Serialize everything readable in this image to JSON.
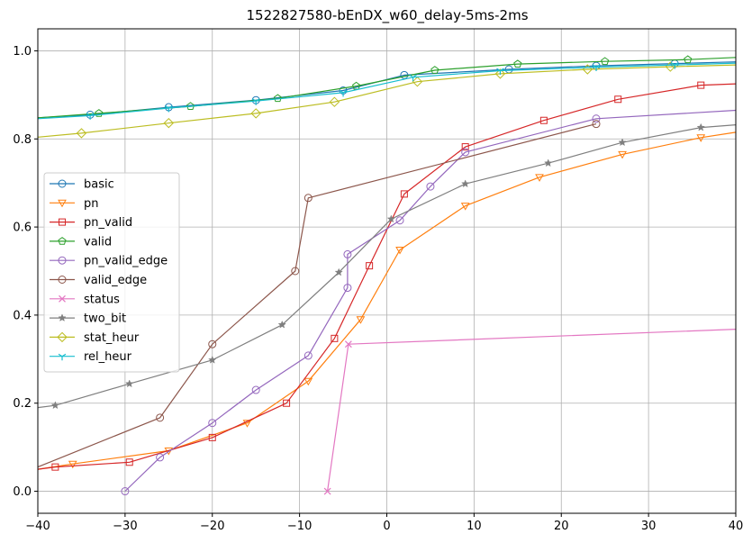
{
  "chart_data": {
    "type": "line",
    "title": "1522827580-bEnDX_w60_delay-5ms-2ms",
    "xlabel": "",
    "ylabel": "",
    "xlim": [
      -40,
      40
    ],
    "ylim": [
      -0.05,
      1.05
    ],
    "xticks": [
      -40,
      -30,
      -20,
      -10,
      0,
      10,
      20,
      30,
      40
    ],
    "xtick_labels": [
      "−40",
      "−30",
      "−20",
      "−10",
      "0",
      "10",
      "20",
      "30",
      "40"
    ],
    "yticks": [
      0.0,
      0.2,
      0.4,
      0.6,
      0.8,
      1.0
    ],
    "ytick_labels": [
      "0.0",
      "0.2",
      "0.4",
      "0.6",
      "0.8",
      "1.0"
    ],
    "grid": true,
    "legend_position": "center-left",
    "series": [
      {
        "name": "basic",
        "color": "#1f77b4",
        "marker": "circle",
        "x": [
          -40,
          -34,
          -25,
          -15,
          -5,
          2,
          14,
          24,
          33,
          40
        ],
        "y": [
          0.848,
          0.855,
          0.872,
          0.888,
          0.91,
          0.945,
          0.958,
          0.966,
          0.971,
          0.975
        ]
      },
      {
        "name": "pn",
        "color": "#ff7f0e",
        "marker": "triangle_down",
        "x": [
          -40,
          -36,
          -25,
          -16,
          -9,
          -3,
          1.5,
          9,
          17.5,
          27,
          36,
          40
        ],
        "y": [
          0.05,
          0.062,
          0.092,
          0.155,
          0.25,
          0.39,
          0.548,
          0.648,
          0.713,
          0.765,
          0.803,
          0.815
        ]
      },
      {
        "name": "pn_valid",
        "color": "#d62728",
        "marker": "square",
        "x": [
          -40,
          -38,
          -29.5,
          -20,
          -11.5,
          -6,
          -2,
          2,
          9,
          18,
          26.5,
          36,
          40
        ],
        "y": [
          0.05,
          0.055,
          0.066,
          0.122,
          0.2,
          0.347,
          0.512,
          0.675,
          0.782,
          0.842,
          0.89,
          0.922,
          0.925
        ]
      },
      {
        "name": "valid",
        "color": "#2ca02c",
        "marker": "pentagon",
        "x": [
          -40,
          -33,
          -22.5,
          -12.5,
          -3.5,
          5.5,
          15,
          25,
          34.5,
          40
        ],
        "y": [
          0.848,
          0.858,
          0.874,
          0.892,
          0.92,
          0.956,
          0.97,
          0.976,
          0.98,
          0.985
        ]
      },
      {
        "name": "pn_valid_edge",
        "color": "#9467bd",
        "marker": "circle",
        "x": [
          -30,
          -26,
          -20,
          -15,
          -9,
          -4.5,
          -4.5,
          1.5,
          5,
          9,
          24,
          40
        ],
        "y": [
          0.0,
          0.077,
          0.155,
          0.23,
          0.308,
          0.462,
          0.538,
          0.615,
          0.692,
          0.77,
          0.846,
          0.865
        ]
      },
      {
        "name": "valid_edge",
        "color": "#8c564b",
        "marker": "circle",
        "x": [
          -40,
          -26,
          -20,
          -10.5,
          -9,
          24
        ],
        "y": [
          0.055,
          0.167,
          0.334,
          0.5,
          0.666,
          0.834
        ]
      },
      {
        "name": "status",
        "color": "#e377c2",
        "marker": "x",
        "x": [
          -6.8,
          -4.4,
          40
        ],
        "y": [
          0.0,
          0.334,
          0.368
        ]
      },
      {
        "name": "two_bit",
        "color": "#7f7f7f",
        "marker": "star",
        "x": [
          -40,
          -38,
          -29.5,
          -20,
          -12,
          -5.5,
          0.5,
          9,
          18.5,
          27,
          36,
          40
        ],
        "y": [
          0.19,
          0.195,
          0.244,
          0.298,
          0.378,
          0.497,
          0.618,
          0.698,
          0.745,
          0.792,
          0.826,
          0.832
        ]
      },
      {
        "name": "stat_heur",
        "color": "#bcbd22",
        "marker": "diamond",
        "x": [
          -40,
          -35,
          -25,
          -15,
          -6,
          3.5,
          13,
          23,
          32.5,
          40
        ],
        "y": [
          0.804,
          0.813,
          0.836,
          0.858,
          0.884,
          0.93,
          0.948,
          0.958,
          0.964,
          0.968
        ]
      },
      {
        "name": "rel_heur",
        "color": "#17becf",
        "marker": "tri_down",
        "x": [
          -40,
          -34,
          -25,
          -15,
          -5,
          3,
          13,
          24,
          33,
          40
        ],
        "y": [
          0.846,
          0.853,
          0.87,
          0.886,
          0.905,
          0.94,
          0.955,
          0.963,
          0.968,
          0.972
        ]
      }
    ]
  }
}
